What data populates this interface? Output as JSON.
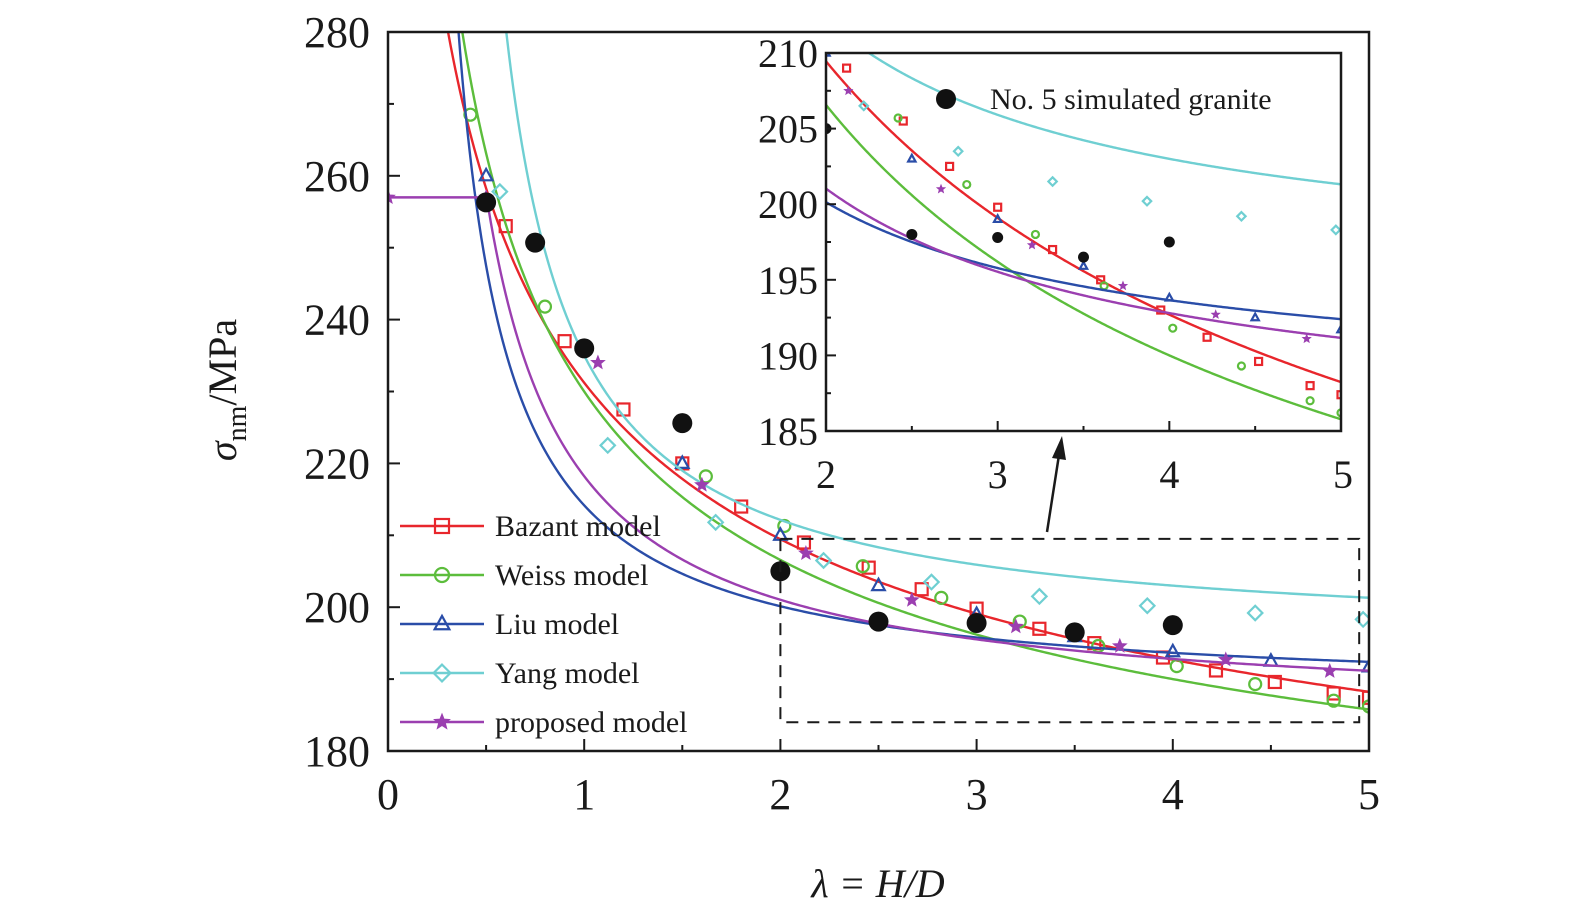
{
  "chart_data": [
    {
      "type": "line",
      "xlabel": "λ = H/D",
      "ylabel": "σnm/MPa",
      "xlim": [
        0,
        5
      ],
      "ylim": [
        180,
        280
      ],
      "xticks": [
        "0",
        "1",
        "2",
        "3",
        "4",
        "5"
      ],
      "yticks": [
        "180",
        "200",
        "220",
        "240",
        "260",
        "280"
      ],
      "grid": false,
      "legend_position": "bottom-left",
      "series": [
        {
          "name": "Bazant model",
          "color": "#e8262c",
          "marker": "square",
          "x": [
            0.6,
            0.9,
            1.2,
            1.5,
            1.8,
            2.12,
            2.45,
            2.72,
            3.0,
            3.32,
            3.6,
            3.95,
            4.22,
            4.52,
            4.82,
            5.0
          ],
          "y": [
            253.0,
            237.0,
            227.5,
            220.0,
            214.0,
            209.0,
            205.5,
            202.5,
            199.8,
            197.0,
            195.0,
            193.0,
            191.2,
            189.6,
            188.0,
            187.4
          ]
        },
        {
          "name": "Weiss model",
          "color": "#5cbd3c",
          "marker": "circle",
          "x": [
            0.42,
            0.8,
            1.62,
            2.02,
            2.42,
            2.82,
            3.22,
            3.62,
            4.02,
            4.42,
            4.82,
            5.0
          ],
          "y": [
            268.5,
            241.8,
            218.2,
            211.3,
            205.7,
            201.3,
            198.0,
            194.6,
            191.8,
            189.3,
            187.0,
            186.2
          ]
        },
        {
          "name": "Liu model",
          "color": "#2a4da8",
          "marker": "triangle",
          "x": [
            0.5,
            1.0,
            1.5,
            2.0,
            2.5,
            3.0,
            3.5,
            4.0,
            4.5,
            5.0
          ],
          "y": [
            260.0,
            236.0,
            220.0,
            210.0,
            203.0,
            199.0,
            195.9,
            193.8,
            192.5,
            191.7
          ]
        },
        {
          "name": "Yang model",
          "color": "#6fcfd2",
          "marker": "diamond",
          "x": [
            0.57,
            1.12,
            1.67,
            2.22,
            2.77,
            3.32,
            3.87,
            4.42,
            4.97
          ],
          "y": [
            257.8,
            222.5,
            211.8,
            206.5,
            203.5,
            201.5,
            200.2,
            199.2,
            198.3
          ]
        },
        {
          "name": "proposed model",
          "color": "#9b3fb0",
          "marker": "star",
          "x": [
            0.0,
            0.5,
            1.07,
            1.6,
            2.13,
            2.67,
            3.2,
            3.73,
            4.27,
            4.8
          ],
          "y": [
            257.0,
            257.0,
            234.0,
            217.0,
            207.5,
            201.0,
            197.3,
            194.6,
            192.7,
            191.1
          ]
        }
      ],
      "scatter": {
        "name": "No. 5 simulated granite",
        "color": "#111111",
        "x": [
          0.5,
          0.75,
          1.0,
          1.5,
          2.0,
          2.5,
          3.0,
          3.5,
          4.0
        ],
        "y": [
          256.3,
          250.7,
          236.0,
          225.6,
          205.0,
          198.0,
          197.8,
          196.5,
          197.5
        ]
      },
      "zoom_box": {
        "xlim": [
          2,
          4.95
        ],
        "ylim": [
          184,
          209.5
        ]
      }
    },
    {
      "type": "line",
      "role": "inset",
      "xlim": [
        2,
        5
      ],
      "ylim": [
        185,
        210
      ],
      "xticks": [
        "2",
        "3",
        "4",
        "5"
      ],
      "yticks": [
        "185",
        "190",
        "195",
        "200",
        "205",
        "210"
      ],
      "legend": [
        "No. 5 simulated granite"
      ],
      "legend_position": "top-right"
    }
  ]
}
